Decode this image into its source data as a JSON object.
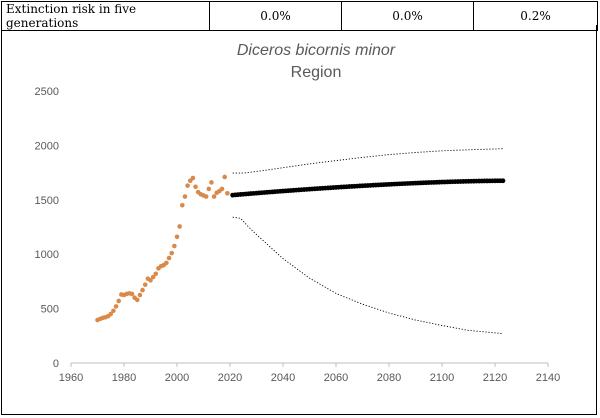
{
  "header": {
    "label": "Extinction risk in five generations",
    "values": [
      "0.0%",
      "0.0%",
      "0.2%"
    ]
  },
  "colors": {
    "observed": "#D9894A",
    "projection": "#000000",
    "bounds": "#000000",
    "axis": "#bfbfbf",
    "text": "#595959"
  },
  "chart_data": {
    "type": "scatter",
    "title": "Diceros bicornis minor",
    "subtitle": "Region",
    "xlabel": "",
    "ylabel": "",
    "xlim": [
      1960,
      2140
    ],
    "ylim": [
      0,
      2500
    ],
    "xticks": [
      1960,
      1980,
      2000,
      2020,
      2040,
      2060,
      2080,
      2100,
      2120,
      2140
    ],
    "yticks": [
      0,
      500,
      1000,
      1500,
      2000,
      2500
    ],
    "grid": false,
    "series": [
      {
        "name": "Observed",
        "style": "markers",
        "points": [
          [
            1970,
            395
          ],
          [
            1971,
            405
          ],
          [
            1972,
            415
          ],
          [
            1973,
            420
          ],
          [
            1974,
            430
          ],
          [
            1975,
            450
          ],
          [
            1976,
            480
          ],
          [
            1977,
            520
          ],
          [
            1978,
            570
          ],
          [
            1979,
            630
          ],
          [
            1980,
            625
          ],
          [
            1981,
            635
          ],
          [
            1982,
            640
          ],
          [
            1983,
            635
          ],
          [
            1984,
            600
          ],
          [
            1985,
            580
          ],
          [
            1986,
            625
          ],
          [
            1987,
            670
          ],
          [
            1988,
            720
          ],
          [
            1989,
            775
          ],
          [
            1990,
            760
          ],
          [
            1991,
            790
          ],
          [
            1992,
            820
          ],
          [
            1993,
            870
          ],
          [
            1994,
            890
          ],
          [
            1995,
            900
          ],
          [
            1996,
            920
          ],
          [
            1997,
            965
          ],
          [
            1998,
            1010
          ],
          [
            1999,
            1075
          ],
          [
            2000,
            1160
          ],
          [
            2001,
            1255
          ],
          [
            2002,
            1450
          ],
          [
            2003,
            1530
          ],
          [
            2004,
            1630
          ],
          [
            2005,
            1675
          ],
          [
            2006,
            1700
          ],
          [
            2007,
            1620
          ],
          [
            2008,
            1570
          ],
          [
            2009,
            1550
          ],
          [
            2010,
            1540
          ],
          [
            2011,
            1530
          ],
          [
            2012,
            1600
          ],
          [
            2013,
            1660
          ],
          [
            2014,
            1530
          ],
          [
            2015,
            1565
          ],
          [
            2016,
            1580
          ],
          [
            2017,
            1600
          ],
          [
            2018,
            1710
          ],
          [
            2019,
            1560
          ]
        ]
      },
      {
        "name": "Projected mean",
        "style": "markers",
        "start": 2021,
        "end": 2123,
        "start_value": 1543,
        "end_value": 1675
      },
      {
        "name": "Upper bound",
        "style": "dotted",
        "points": [
          [
            2021,
            1745
          ],
          [
            2025,
            1745
          ],
          [
            2030,
            1760
          ],
          [
            2040,
            1795
          ],
          [
            2050,
            1830
          ],
          [
            2060,
            1860
          ],
          [
            2070,
            1890
          ],
          [
            2080,
            1915
          ],
          [
            2090,
            1935
          ],
          [
            2100,
            1950
          ],
          [
            2110,
            1960
          ],
          [
            2123,
            1970
          ]
        ]
      },
      {
        "name": "Lower bound",
        "style": "dotted",
        "points": [
          [
            2021,
            1340
          ],
          [
            2024,
            1330
          ],
          [
            2027,
            1250
          ],
          [
            2030,
            1180
          ],
          [
            2040,
            960
          ],
          [
            2050,
            780
          ],
          [
            2060,
            640
          ],
          [
            2070,
            540
          ],
          [
            2080,
            460
          ],
          [
            2090,
            395
          ],
          [
            2100,
            345
          ],
          [
            2110,
            300
          ],
          [
            2123,
            270
          ]
        ]
      }
    ]
  }
}
